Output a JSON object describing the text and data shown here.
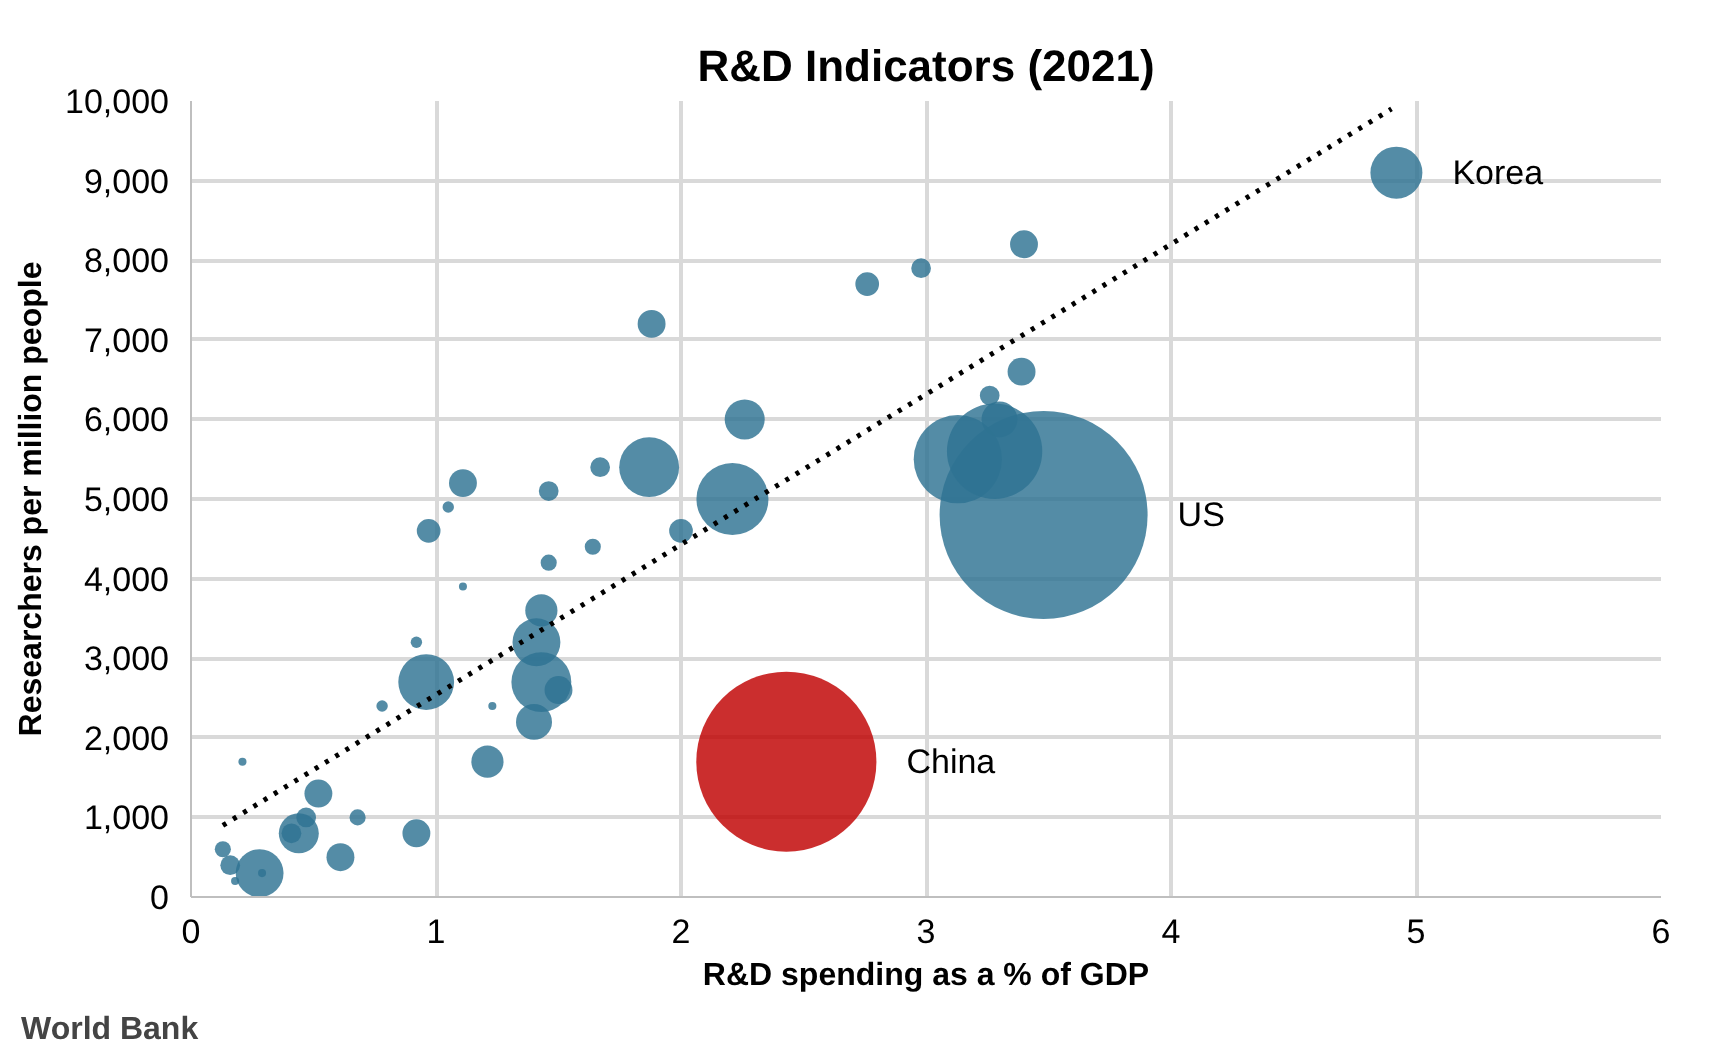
{
  "chart_data": {
    "type": "bubble",
    "title": "R&D Indicators (2021)",
    "xlabel": "R&D spending as a % of GDP",
    "ylabel": "Researchers per million people",
    "xlim": [
      0,
      6
    ],
    "xticks": [
      0,
      1,
      2,
      3,
      4,
      5,
      6
    ],
    "ylim": [
      0,
      10000
    ],
    "yticks": [
      0,
      {
        "value": 1000,
        "label": "1,000"
      },
      {
        "value": 2000,
        "label": "2,000"
      },
      {
        "value": 3000,
        "label": "3,000"
      },
      {
        "value": 4000,
        "label": "4,000"
      },
      {
        "value": 5000,
        "label": "5,000"
      },
      {
        "value": 6000,
        "label": "6,000"
      },
      {
        "value": 7000,
        "label": "7,000"
      },
      {
        "value": 8000,
        "label": "8,000"
      },
      {
        "value": 9000,
        "label": "9,000"
      },
      {
        "value": 10000,
        "label": "10,000"
      }
    ],
    "grid": true,
    "series": [
      {
        "name": "Korea",
        "color": "#2e7393",
        "x": [
          4.92
        ],
        "values": [
          9100
        ],
        "sizes": [
          0.0625
        ]
      },
      {
        "name": "US",
        "color": "#2e7393",
        "x": [
          3.48
        ],
        "values": [
          4800
        ],
        "sizes": [
          1
        ]
      },
      {
        "color": "#2e7393",
        "x": [
          2.76,
          2.98,
          3.4,
          3.39,
          3.26,
          3.3,
          3.13,
          3.28,
          2.26,
          2.21,
          1.88,
          1.11,
          1.05,
          1.46,
          1.67,
          1.87,
          0.97,
          1.46,
          1.64,
          2.0,
          1.11,
          0.92,
          0.96,
          0.78,
          1.43,
          1.41,
          1.43,
          1.5,
          1.4,
          1.23,
          1.21,
          0.21,
          0.52,
          0.47,
          0.44,
          0.41,
          0.68,
          0.92,
          0.61,
          0.13,
          0.16,
          0.28,
          0.29,
          0.18
        ],
        "values": [
          7700,
          7900,
          8200,
          6600,
          6300,
          6000,
          5500,
          5600,
          6000,
          5000,
          7200,
          5200,
          4900,
          5100,
          5400,
          5400,
          4600,
          4200,
          4400,
          4600,
          3900,
          3200,
          2700,
          2400,
          3600,
          3200,
          2700,
          2600,
          2200,
          2400,
          1700,
          1700,
          1300,
          1000,
          800,
          800,
          1000,
          800,
          500,
          600,
          400,
          300,
          300,
          200
        ],
        "sizes": [
          0.013,
          0.009,
          0.018,
          0.018,
          0.009,
          0.03,
          0.18,
          0.21,
          0.037,
          0.12,
          0.018,
          0.018,
          0.003,
          0.009,
          0.009,
          0.083,
          0.013,
          0.006,
          0.006,
          0.013,
          0.0015,
          0.003,
          0.072,
          0.003,
          0.024,
          0.053,
          0.083,
          0.018,
          0.03,
          0.0015,
          0.024,
          0.0015,
          0.018,
          0.009,
          0.037,
          0.009,
          0.006,
          0.018,
          0.018,
          0.006,
          0.009,
          0.053,
          0.0015,
          0.0015
        ]
      },
      {
        "name": "China",
        "color": "#c00000",
        "x": [
          2.43
        ],
        "values": [
          1700
        ],
        "sizes": [
          0.75
        ]
      },
      {
        "type": "line",
        "color": "#000000",
        "line_style": "dotted",
        "x": [
          0.13,
          4.9
        ],
        "values": [
          900,
          9900
        ]
      }
    ],
    "annotations": [
      "World Bank"
    ]
  }
}
